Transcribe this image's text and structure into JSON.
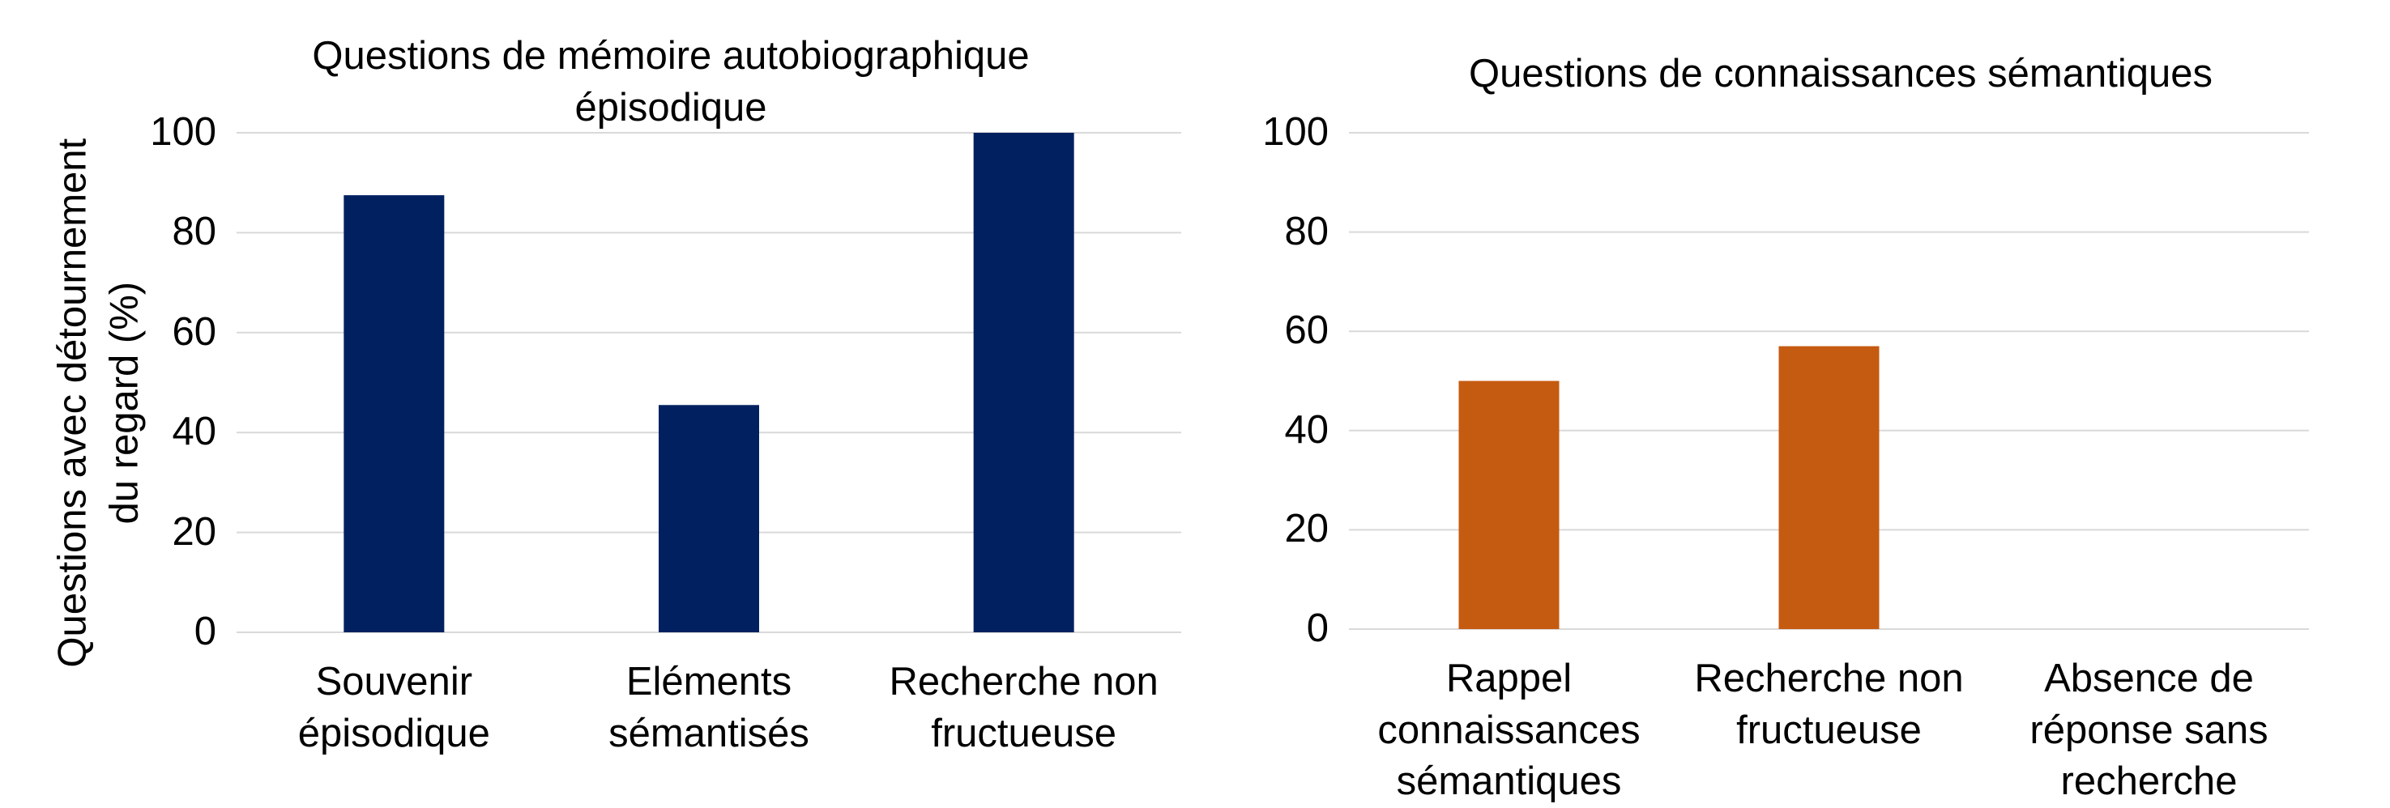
{
  "chart_data": [
    {
      "type": "bar",
      "title": "Questions de mémoire autobiographique épisodique",
      "y_label": "Questions avec détournement du regard (%)",
      "categories": [
        "Souvenir épisodique",
        "Eléments sémantisés",
        "Recherche non fructueuse"
      ],
      "values": [
        87.5,
        45.5,
        100
      ],
      "color": "#002060",
      "ylim": [
        0,
        100
      ],
      "yticks": [
        0,
        20,
        40,
        60,
        80,
        100
      ],
      "grid": true
    },
    {
      "type": "bar",
      "title": "Questions de connaissances sémantiques",
      "categories": [
        "Rappel connaissances sémantiques",
        "Recherche non fructueuse",
        "Absence de réponse sans recherche"
      ],
      "values": [
        50,
        57,
        0
      ],
      "color": "#c55a11",
      "ylim": [
        0,
        100
      ],
      "yticks": [
        0,
        20,
        40,
        60,
        80,
        100
      ],
      "grid": true
    }
  ]
}
